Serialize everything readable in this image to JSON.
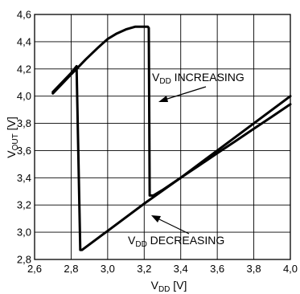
{
  "chart_data": {
    "type": "line",
    "xlabel": {
      "main": "V",
      "sub": "DD",
      "rest": " [V]"
    },
    "ylabel": {
      "main": "V",
      "sub": "OUT",
      "rest": " [V]"
    },
    "xlim": [
      2.6,
      4.0
    ],
    "ylim": [
      2.8,
      4.6
    ],
    "x_ticks": [
      "2,6",
      "2,8",
      "3,0",
      "3,2",
      "3,4",
      "3,6",
      "3,8",
      "4,0"
    ],
    "y_ticks": [
      "2,8",
      "3,0",
      "3,2",
      "3,4",
      "3,6",
      "3,8",
      "4,0",
      "4,2",
      "4,4",
      "4,6"
    ],
    "grid": true,
    "series": [
      {
        "name": "VDD INCREASING",
        "x": [
          2.7,
          2.75,
          2.8,
          2.83,
          2.88,
          2.95,
          3.0,
          3.05,
          3.1,
          3.15,
          3.22,
          3.225,
          3.23,
          3.25,
          3.3,
          3.4,
          3.5,
          3.6,
          3.7,
          3.8,
          3.9,
          4.0
        ],
        "y": [
          4.02,
          4.09,
          4.16,
          4.2,
          4.27,
          4.36,
          4.42,
          4.46,
          4.49,
          4.51,
          4.51,
          4.5,
          3.27,
          3.27,
          3.31,
          3.4,
          3.49,
          3.58,
          3.67,
          3.76,
          3.85,
          3.94
        ]
      },
      {
        "name": "VDD DECREASING",
        "x": [
          4.0,
          3.8,
          3.6,
          3.4,
          3.2,
          3.0,
          2.86,
          2.85,
          2.83,
          2.8,
          2.75,
          2.7
        ],
        "y": [
          4.0,
          3.8,
          3.6,
          3.4,
          3.21,
          3.01,
          2.87,
          2.87,
          4.22,
          4.17,
          4.1,
          4.03
        ]
      }
    ],
    "annotations": [
      {
        "main": "V",
        "sub": "DD",
        "rest": " INCREASING",
        "arrow_to_series": 0
      },
      {
        "main": "V",
        "sub": "DD",
        "rest": " DECREASING",
        "arrow_to_series": 1
      }
    ]
  }
}
